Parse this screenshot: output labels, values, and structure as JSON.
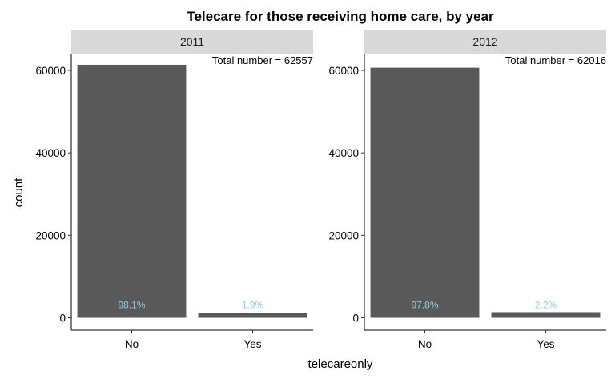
{
  "chart_data": {
    "type": "bar",
    "title": "Telecare for those receiving home care, by year",
    "xlabel": "telecareonly",
    "ylabel": "count",
    "ylim": [
      0,
      64000
    ],
    "yticks": [
      0,
      20000,
      40000,
      60000
    ],
    "ytick_labels": [
      "0",
      "20000",
      "40000",
      "60000"
    ],
    "categories": [
      "No",
      "Yes"
    ],
    "grid": false,
    "bar_color": "#595959",
    "label_color": "#87CEEB",
    "strip_color": "#D9D9D9",
    "panels": [
      {
        "facet": "2011",
        "total_label": "Total number = 62557",
        "values": [
          61368,
          1189
        ],
        "pct_labels": [
          "98.1%",
          "1.9%"
        ]
      },
      {
        "facet": "2012",
        "total_label": "Total number = 62016",
        "values": [
          60652,
          1364
        ],
        "pct_labels": [
          "97.8%",
          "2.2%"
        ]
      }
    ]
  }
}
